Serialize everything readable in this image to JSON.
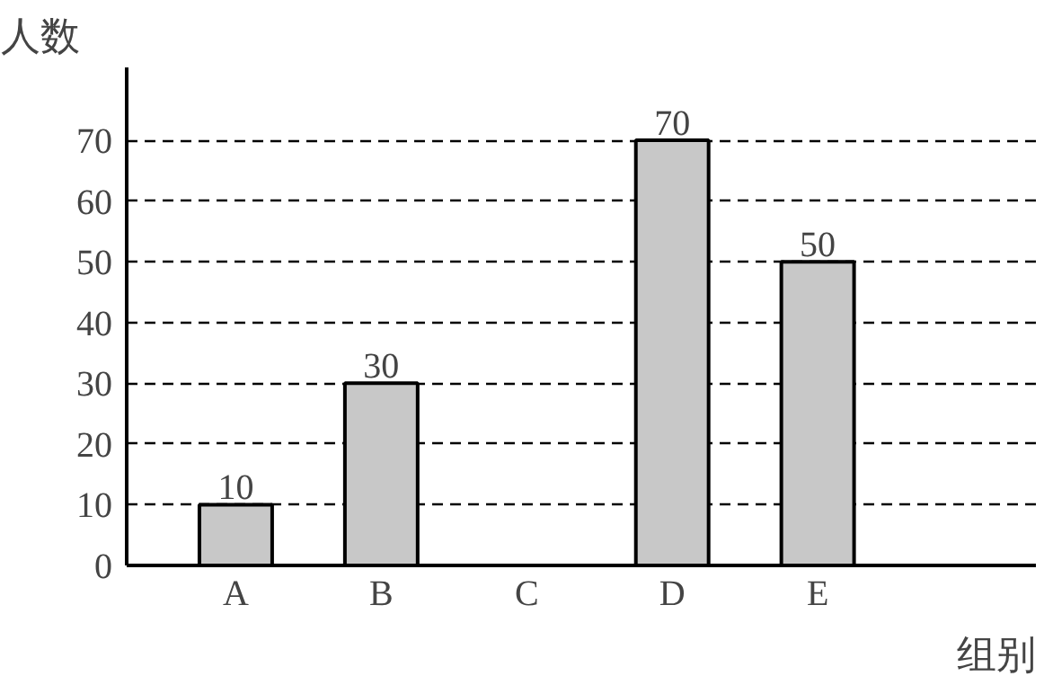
{
  "chart_data": {
    "type": "bar",
    "xlabel": "组别",
    "ylabel": "人数",
    "categories": [
      "A",
      "B",
      "C",
      "D",
      "E"
    ],
    "values": [
      10,
      30,
      null,
      70,
      50
    ],
    "color": "#c8c8c8",
    "ylim": [
      0,
      82
    ],
    "yticks": [
      0,
      10,
      20,
      30,
      40,
      50,
      60,
      70
    ],
    "grid": "y",
    "data_labels": true,
    "line_style": "dashed"
  }
}
